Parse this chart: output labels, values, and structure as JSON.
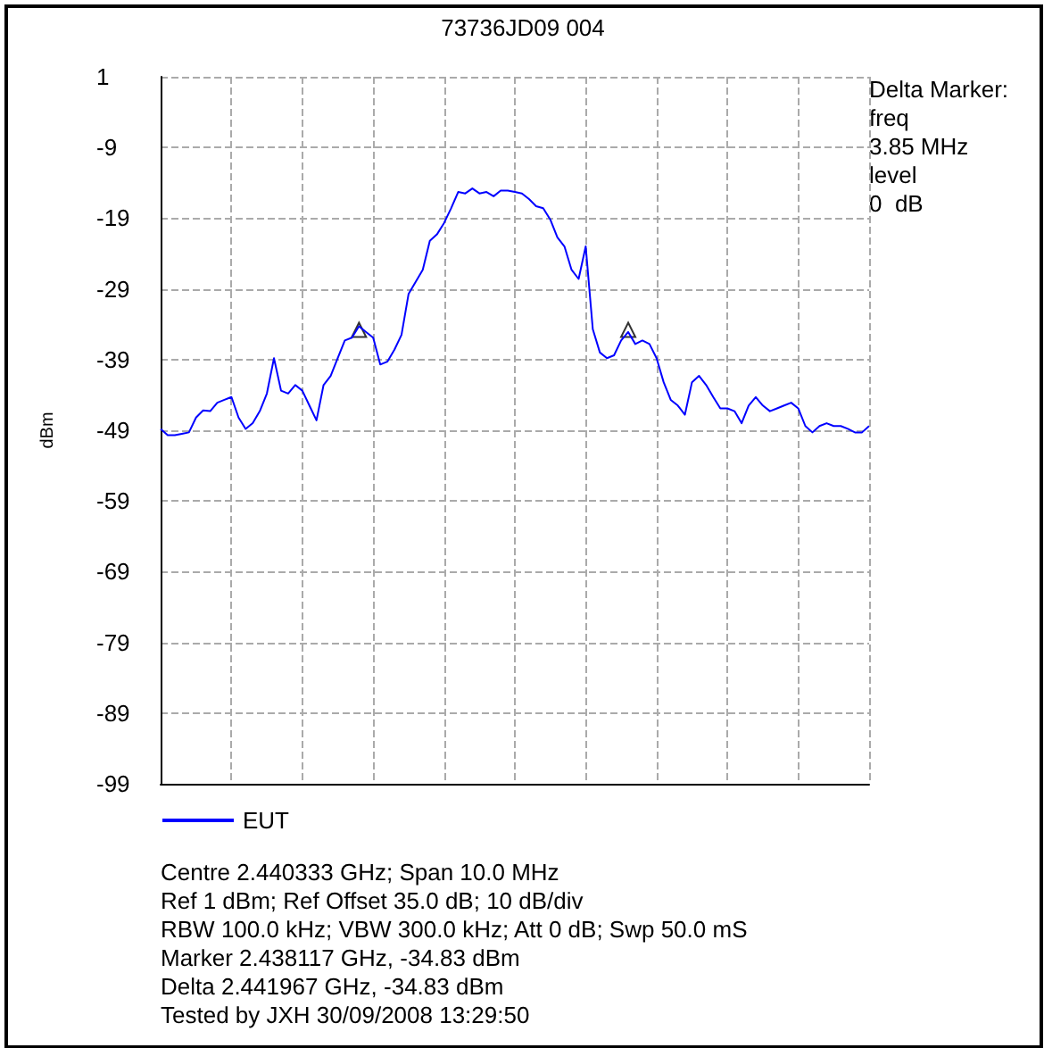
{
  "chart_data": {
    "type": "line",
    "title": "73736JD09 004",
    "ylabel": "dBm",
    "categories": [
      null,
      null,
      null,
      null,
      null,
      null,
      null,
      null,
      null,
      null,
      null,
      null,
      null,
      null,
      null,
      null,
      null,
      null,
      null,
      null,
      null,
      null,
      null,
      null,
      null,
      null,
      null,
      null,
      null,
      null,
      null,
      null,
      null,
      null,
      null,
      null,
      null,
      null,
      null,
      null,
      null,
      null,
      null,
      null,
      null,
      null,
      null,
      null,
      null,
      null,
      null,
      null,
      null,
      null,
      null,
      null,
      null,
      null,
      null,
      null,
      null,
      null,
      null,
      null,
      null,
      null,
      null,
      null,
      null,
      null,
      null,
      null,
      null,
      null,
      null,
      null,
      null,
      null,
      null,
      null,
      null,
      null,
      null,
      null,
      null,
      null,
      null,
      null,
      null,
      null,
      null,
      null,
      null,
      null,
      null,
      null,
      null,
      null,
      null,
      null,
      null
    ],
    "series": [
      {
        "name": "EUT",
        "color": "#0000ff",
        "values": [
          -48.8,
          -49.7,
          -49.7,
          -49.5,
          -49.3,
          -47.2,
          -46.2,
          -46.3,
          -45.1,
          -44.7,
          -44.3,
          -47.2,
          -48.8,
          -48,
          -46.3,
          -43.8,
          -38.8,
          -43.4,
          -43.8,
          -42.6,
          -43.4,
          -45.5,
          -47.6,
          -42.6,
          -41.3,
          -38.8,
          -36.3,
          -35.9,
          -34.3,
          -35.1,
          -35.9,
          -39.7,
          -39.3,
          -37.6,
          -35.5,
          -29.7,
          -28,
          -26.3,
          -22.2,
          -21.3,
          -19.7,
          -17.6,
          -15.3,
          -15.5,
          -14.8,
          -15.5,
          -15.3,
          -15.9,
          -15.1,
          -15.1,
          -15.3,
          -15.5,
          -16.3,
          -17.3,
          -17.6,
          -19.2,
          -21.7,
          -23,
          -26.3,
          -27.6,
          -23,
          -34.7,
          -38,
          -38.8,
          -38.4,
          -36.3,
          -35.1,
          -36.8,
          -36.3,
          -36.8,
          -38.8,
          -42.2,
          -44.7,
          -45.5,
          -46.8,
          -42.2,
          -41.3,
          -42.6,
          -44.3,
          -45.9,
          -45.9,
          -46.3,
          -48,
          -45.5,
          -44.3,
          -45.5,
          -46.3,
          -45.9,
          -45.5,
          -45.1,
          -45.9,
          -48.4,
          -49.3,
          -48.4,
          -48,
          -48.4,
          -48.4,
          -48.8,
          -49.3,
          -49.3,
          -48.4
        ]
      },
      {
        "type": "scatter",
        "marker": "triangle",
        "color": "#000000",
        "values": [
          null,
          null,
          null,
          null,
          null,
          null,
          null,
          null,
          null,
          null,
          null,
          null,
          null,
          null,
          null,
          null,
          null,
          null,
          null,
          null,
          null,
          null,
          null,
          null,
          null,
          null,
          null,
          null,
          -34.8,
          null,
          null,
          null,
          null,
          null,
          null,
          null,
          null,
          null,
          null,
          null,
          null,
          null,
          null,
          null,
          null,
          null,
          null,
          null,
          null,
          null,
          null,
          null,
          null,
          null,
          null,
          null,
          null,
          null,
          null,
          null,
          null,
          null,
          null,
          null,
          null,
          null,
          -34.8,
          null,
          null,
          null,
          null,
          null,
          null,
          null,
          null,
          null,
          null,
          null,
          null,
          null,
          null,
          null,
          null,
          null,
          null,
          null,
          null,
          null,
          null,
          null,
          null,
          null,
          null,
          null,
          null,
          null,
          null,
          null,
          null,
          null,
          null
        ]
      }
    ],
    "ylim": [
      -99,
      1
    ],
    "yticks": [
      1,
      -9,
      -19,
      -29,
      -39,
      -49,
      -59,
      -69,
      -79,
      -89,
      -99
    ],
    "grid": true,
    "legend": "bottom left",
    "marker": "none",
    "annotations": [
      "Delta Marker:\nfreq\n3.85 MHz\nlevel\n0  dB",
      "Centre 2.440333 GHz; Span 10.0 MHz",
      "Ref 1 dBm; Ref Offset 35.0 dB; 10 dB/div",
      "RBW 100.0 kHz; VBW 300.0 kHz; Att 0 dB; Swp 50.0 mS",
      "Marker 2.438117 GHz, -34.83 dBm",
      "Delta 2.441967 GHz, -34.83 dBm",
      "Tested by JXH 30/09/2008 13:29:50"
    ]
  }
}
